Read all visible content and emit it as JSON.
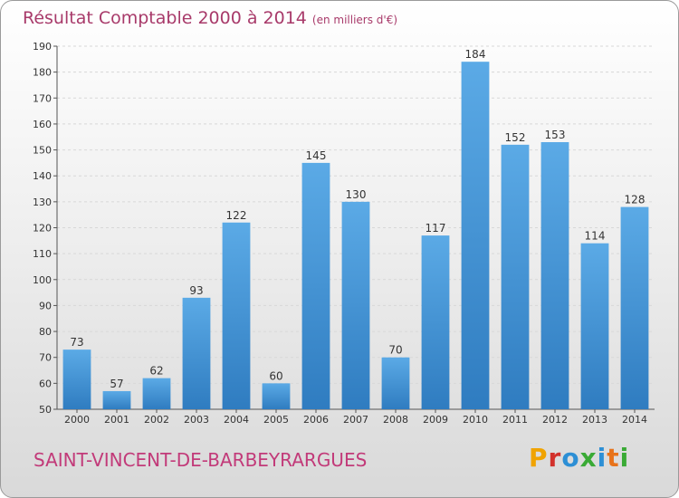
{
  "title": "Résultat Comptable 2000 à 2014",
  "subtitle": "(en milliers d'€)",
  "place": "SAINT-VINCENT-DE-BARBEYRARGUES",
  "logo": {
    "letters": [
      "P",
      "r",
      "o",
      "x",
      "i",
      "t",
      "i"
    ],
    "colors": [
      "#f0a300",
      "#d2312b",
      "#2d8fd5",
      "#3aaa35",
      "#2d8fd5",
      "#e8731a",
      "#3aaa35"
    ]
  },
  "colors": {
    "bar_top": "#5baae6",
    "bar_bottom": "#2f7cc0",
    "grid": "#d8d8d8",
    "axis": "#555555"
  },
  "chart_data": {
    "type": "bar",
    "title": "Résultat Comptable 2000 à 2014",
    "subtitle": "(en milliers d'€)",
    "xlabel": "",
    "ylabel": "",
    "categories": [
      "2000",
      "2001",
      "2002",
      "2003",
      "2004",
      "2005",
      "2006",
      "2007",
      "2008",
      "2009",
      "2010",
      "2011",
      "2012",
      "2013",
      "2014"
    ],
    "values": [
      73,
      57,
      62,
      93,
      122,
      60,
      145,
      130,
      70,
      117,
      184,
      152,
      153,
      114,
      128
    ],
    "ylim": [
      50,
      190
    ],
    "yticks": [
      50,
      60,
      70,
      80,
      90,
      100,
      110,
      120,
      130,
      140,
      150,
      160,
      170,
      180,
      190
    ],
    "grid": true,
    "legend": "none"
  }
}
